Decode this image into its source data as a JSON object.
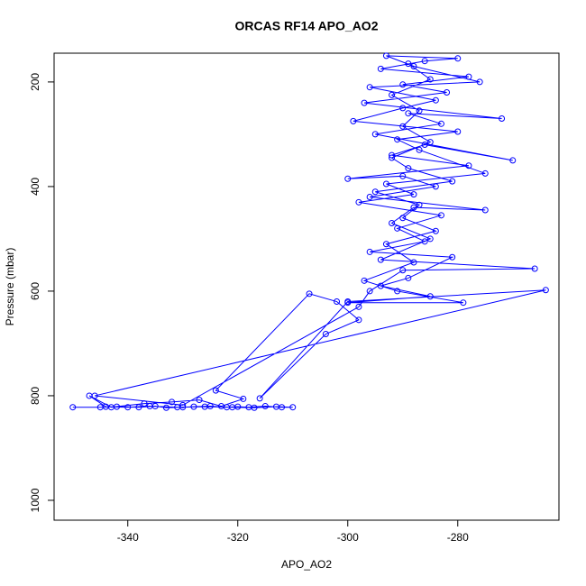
{
  "chart_data": {
    "type": "line",
    "title": "ORCAS RF14 APO_AO2",
    "x_label": "APO_AO2",
    "y_label": "Pressure (mbar)",
    "color": "#0000ff",
    "markers": "circle",
    "xlim": [
      -353.4,
      -261.6
    ],
    "ylim": [
      1038,
      145
    ],
    "xticks": [
      -340,
      -320,
      -300,
      -280
    ],
    "yticks": [
      200,
      400,
      600,
      800,
      1000
    ],
    "x": [
      -350,
      -345,
      -342,
      -338,
      -335,
      -333,
      -330,
      -328,
      -325,
      -322,
      -320,
      -318,
      -315,
      -312,
      -310,
      -313,
      -317,
      -321,
      -326,
      -331,
      -336,
      -340,
      -344,
      -347,
      -343,
      -337,
      -332,
      -327,
      -323,
      -319,
      -324,
      -307,
      -302,
      -298,
      -304,
      -316,
      -300,
      -264,
      -346,
      -330,
      -298,
      -296,
      -290,
      -266,
      -294,
      -285,
      -292,
      -288,
      -275,
      -296,
      -284,
      -290,
      -300,
      -278,
      -292,
      -286,
      -270,
      -295,
      -283,
      -289,
      -272,
      -297,
      -282,
      -290,
      -278,
      -294,
      -286,
      -280,
      -293,
      -288,
      -276,
      -296,
      -284,
      -290,
      -299,
      -280,
      -291,
      -287,
      -275,
      -293,
      -288,
      -298,
      -283,
      -291,
      -286,
      -296,
      -281,
      -289,
      -294,
      -285,
      -300,
      -279,
      -291,
      -297,
      -288,
      -293,
      -284,
      -290,
      -287,
      -295,
      -281,
      -289,
      -292,
      -285,
      -290,
      -287,
      -292,
      -285,
      -289
    ],
    "values": [
      822,
      822,
      821,
      822,
      820,
      823,
      822,
      821,
      820,
      822,
      821,
      822,
      820,
      822,
      822,
      821,
      823,
      822,
      821,
      822,
      820,
      822,
      821,
      800,
      822,
      815,
      812,
      808,
      820,
      806,
      790,
      605,
      620,
      655,
      682,
      805,
      620,
      598,
      800,
      818,
      630,
      600,
      560,
      557,
      540,
      500,
      470,
      440,
      445,
      420,
      400,
      380,
      385,
      360,
      340,
      320,
      350,
      300,
      280,
      260,
      270,
      240,
      220,
      205,
      190,
      175,
      160,
      155,
      150,
      170,
      200,
      210,
      235,
      250,
      275,
      295,
      310,
      330,
      375,
      395,
      415,
      430,
      455,
      480,
      505,
      525,
      535,
      575,
      590,
      610,
      622,
      622,
      600,
      580,
      545,
      510,
      485,
      460,
      435,
      410,
      390,
      365,
      345,
      315,
      285,
      255,
      225,
      195,
      165
    ]
  }
}
